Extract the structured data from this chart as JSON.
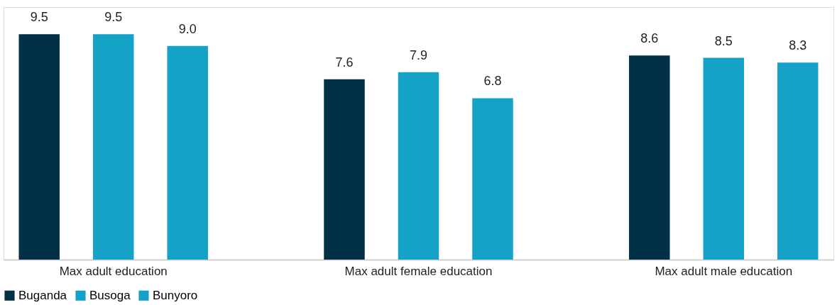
{
  "chart_data": {
    "type": "bar",
    "categories": [
      "Max adult education",
      "Max adult female education",
      "Max adult male education"
    ],
    "series": [
      {
        "name": "Buganda",
        "color": "#023047",
        "values": [
          9.5,
          7.6,
          8.6
        ],
        "value_labels": [
          "9.5",
          "7.6",
          "8.6"
        ]
      },
      {
        "name": "Busoga",
        "color": "#14a2c6",
        "values": [
          9.5,
          7.9,
          8.5
        ],
        "value_labels": [
          "9.5",
          "7.9",
          "8.5"
        ]
      },
      {
        "name": "Bunyoro",
        "color": "#14a2c6",
        "values": [
          9.0,
          6.8,
          8.3
        ],
        "value_labels": [
          "9.0",
          "6.8",
          "8.3"
        ]
      }
    ],
    "grid": false,
    "legend": "bottom"
  }
}
